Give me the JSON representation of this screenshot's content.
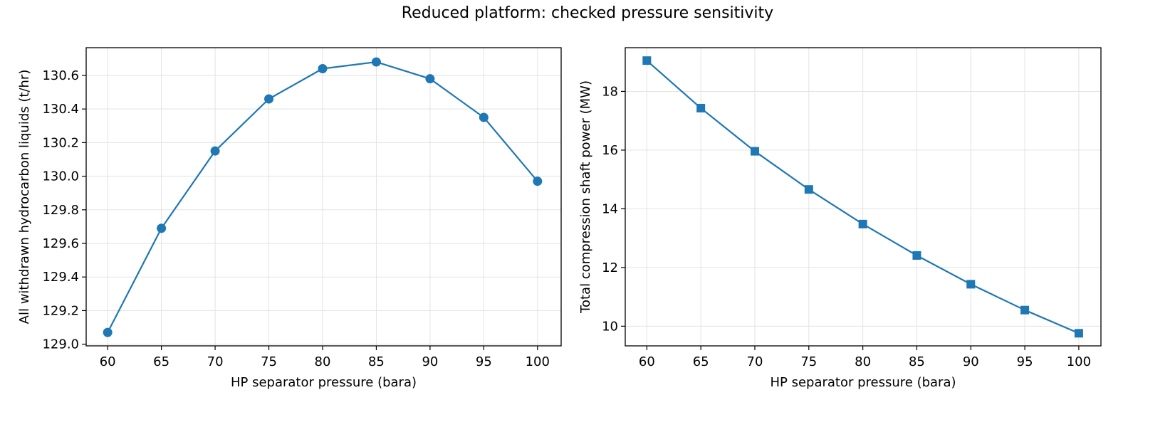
{
  "figure": {
    "title": "Reduced platform: checked pressure sensitivity"
  },
  "chart_data": [
    {
      "type": "line",
      "xlabel": "HP separator pressure (bara)",
      "ylabel": "All withdrawn hydrocarbon liquids (t/hr)",
      "x": [
        60,
        65,
        70,
        75,
        80,
        85,
        90,
        95,
        100
      ],
      "series": [
        {
          "values": [
            129.07,
            129.69,
            130.15,
            130.46,
            130.64,
            130.68,
            130.58,
            130.35,
            129.97
          ],
          "color": "#1f77b4",
          "marker": "circle"
        }
      ],
      "xlim": [
        58,
        102.2
      ],
      "ylim": [
        128.99,
        130.765
      ],
      "xticks": [
        60,
        65,
        70,
        75,
        80,
        85,
        90,
        95,
        100
      ],
      "yticks": [
        129.0,
        129.2,
        129.4,
        129.6,
        129.8,
        130.0,
        130.2,
        130.4,
        130.6
      ],
      "ytick_decimals": 1,
      "grid": true
    },
    {
      "type": "line",
      "xlabel": "HP separator pressure (bara)",
      "ylabel": "Total compression shaft power (MW)",
      "x": [
        60,
        65,
        70,
        75,
        80,
        85,
        90,
        95,
        100
      ],
      "series": [
        {
          "values": [
            19.05,
            17.43,
            15.96,
            14.66,
            13.48,
            12.41,
            11.43,
            10.55,
            9.76
          ],
          "color": "#1f77b4",
          "marker": "square"
        }
      ],
      "xlim": [
        58,
        102.05
      ],
      "ylim": [
        9.33,
        19.49
      ],
      "xticks": [
        60,
        65,
        70,
        75,
        80,
        85,
        90,
        95,
        100
      ],
      "yticks": [
        10,
        12,
        14,
        16,
        18
      ],
      "ytick_decimals": 0,
      "grid": true
    }
  ]
}
